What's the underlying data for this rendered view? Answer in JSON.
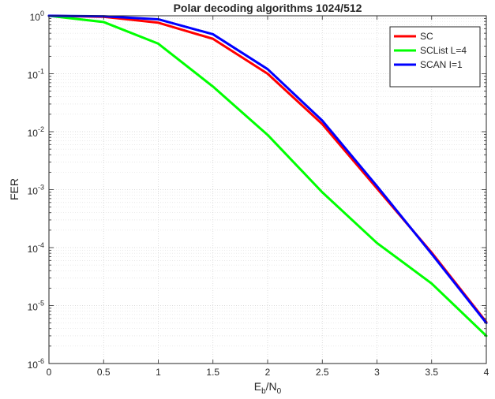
{
  "chart_data": {
    "type": "line",
    "title": "Polar decoding algorithms  1024/512",
    "xlabel": {
      "main": "E",
      "sub1": "b",
      "mid": "/N",
      "sub2": "0"
    },
    "ylabel": "FER",
    "xlim": [
      0,
      4
    ],
    "ylim": [
      1e-06,
      1
    ],
    "yscale": "log",
    "grid": true,
    "minor_grid": true,
    "legend_position": "top-right",
    "x_ticks": [
      "0",
      "0.5",
      "1",
      "1.5",
      "2",
      "2.5",
      "3",
      "3.5",
      "4"
    ],
    "y_ticks": [
      {
        "base": "10",
        "exp": "0"
      },
      {
        "base": "10",
        "exp": "-1"
      },
      {
        "base": "10",
        "exp": "-2"
      },
      {
        "base": "10",
        "exp": "-3"
      },
      {
        "base": "10",
        "exp": "-4"
      },
      {
        "base": "10",
        "exp": "-5"
      },
      {
        "base": "10",
        "exp": "-6"
      }
    ],
    "x": [
      0,
      0.5,
      1,
      1.5,
      2,
      2.5,
      3,
      3.5,
      4
    ],
    "series": [
      {
        "name": "SC",
        "color": "#ff0000",
        "values": [
          1.0,
          0.96,
          0.76,
          0.4,
          0.1,
          0.0135,
          0.00105,
          8.2e-05,
          5.2e-06
        ]
      },
      {
        "name": "SCList L=4",
        "color": "#00ff00",
        "values": [
          1.0,
          0.78,
          0.33,
          0.06,
          0.0088,
          0.0009,
          0.00012,
          2.4e-05,
          3e-06
        ]
      },
      {
        "name": "SCAN I=1",
        "color": "#0000ff",
        "values": [
          1.0,
          0.98,
          0.87,
          0.48,
          0.12,
          0.0155,
          0.00115,
          7.8e-05,
          5e-06
        ]
      }
    ]
  }
}
